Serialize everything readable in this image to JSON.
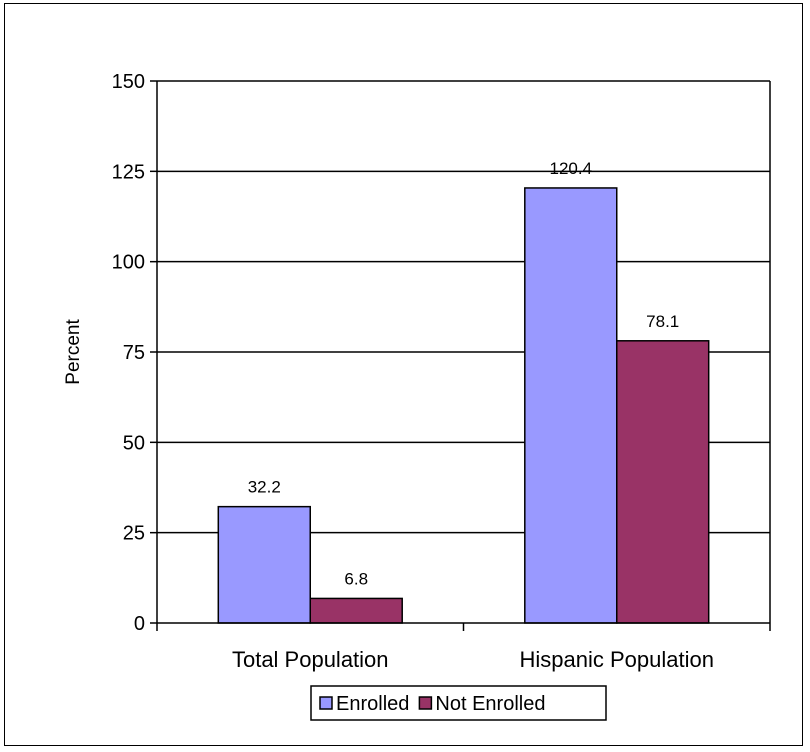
{
  "chart_data": {
    "type": "bar",
    "categories": [
      "Total Population",
      "Hispanic Population"
    ],
    "series": [
      {
        "name": "Enrolled",
        "values": [
          32.2,
          120.4
        ],
        "color": "#9999ff"
      },
      {
        "name": "Not Enrolled",
        "values": [
          6.8,
          78.1
        ],
        "color": "#993366"
      }
    ],
    "data_labels": [
      [
        "32.2",
        "120.4"
      ],
      [
        "6.8",
        "78.1"
      ]
    ],
    "ylabel": "Percent",
    "xlabel": "",
    "ylim": [
      0,
      150
    ],
    "yticks": [
      0,
      25,
      50,
      75,
      100,
      125,
      150
    ],
    "grid": true,
    "legend_position": "bottom"
  }
}
